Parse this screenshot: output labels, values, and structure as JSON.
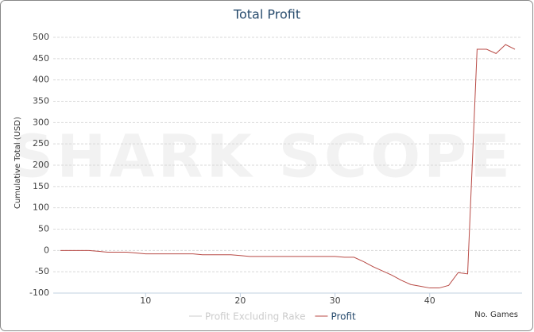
{
  "chart_data": {
    "type": "line",
    "title": "Total Profit",
    "watermark": "SHARK SCOPE",
    "x_label": "No. Games",
    "y_label": "Cumulative Total (USD)",
    "x": [
      1,
      2,
      3,
      4,
      5,
      6,
      7,
      8,
      9,
      10,
      11,
      12,
      13,
      14,
      15,
      16,
      17,
      18,
      19,
      20,
      21,
      22,
      23,
      24,
      25,
      26,
      27,
      28,
      29,
      30,
      31,
      32,
      33,
      34,
      35,
      36,
      37,
      38,
      39,
      40,
      41,
      42,
      43,
      44,
      45,
      46,
      47,
      48,
      49
    ],
    "series": [
      {
        "name": "Profit Excluding Rake",
        "color": "#cccccc",
        "visible": false
      },
      {
        "name": "Profit",
        "color": "#b84a45",
        "visible": true,
        "values": [
          0,
          0,
          0,
          0,
          -2,
          -4,
          -4,
          -4,
          -6,
          -8,
          -8,
          -8,
          -8,
          -8,
          -8,
          -10,
          -10,
          -10,
          -10,
          -12,
          -14,
          -14,
          -14,
          -14,
          -14,
          -14,
          -14,
          -14,
          -14,
          -14,
          -16,
          -16,
          -26,
          -38,
          -48,
          -58,
          -70,
          -80,
          -84,
          -88,
          -88,
          -82,
          -52,
          -55,
          472,
          472,
          462,
          483,
          472
        ]
      }
    ],
    "xlim": [
      0.25,
      49.75
    ],
    "xticks": [
      10,
      20,
      30,
      40
    ],
    "ylim": [
      -100,
      500
    ],
    "yticks": [
      -100,
      -50,
      0,
      50,
      100,
      150,
      200,
      250,
      300,
      350,
      400,
      450,
      500
    ],
    "grid": true
  }
}
